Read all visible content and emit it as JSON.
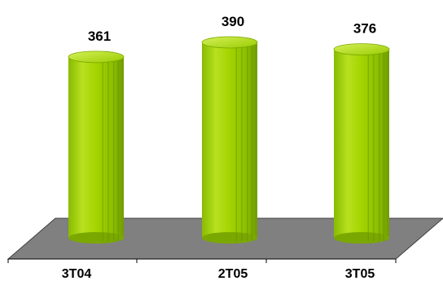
{
  "chart_data": {
    "type": "bar",
    "categories": [
      "3T04",
      "2T05",
      "3T05"
    ],
    "values": [
      361,
      390,
      376
    ],
    "title": "",
    "xlabel": "",
    "ylabel": "",
    "grid": false,
    "legend": "none",
    "colors": {
      "bar": "#99cc00",
      "bar_highlight": "#ccee44",
      "bar_shadow": "#669900",
      "floor": "#808080",
      "floor_edge": "#404040"
    }
  }
}
